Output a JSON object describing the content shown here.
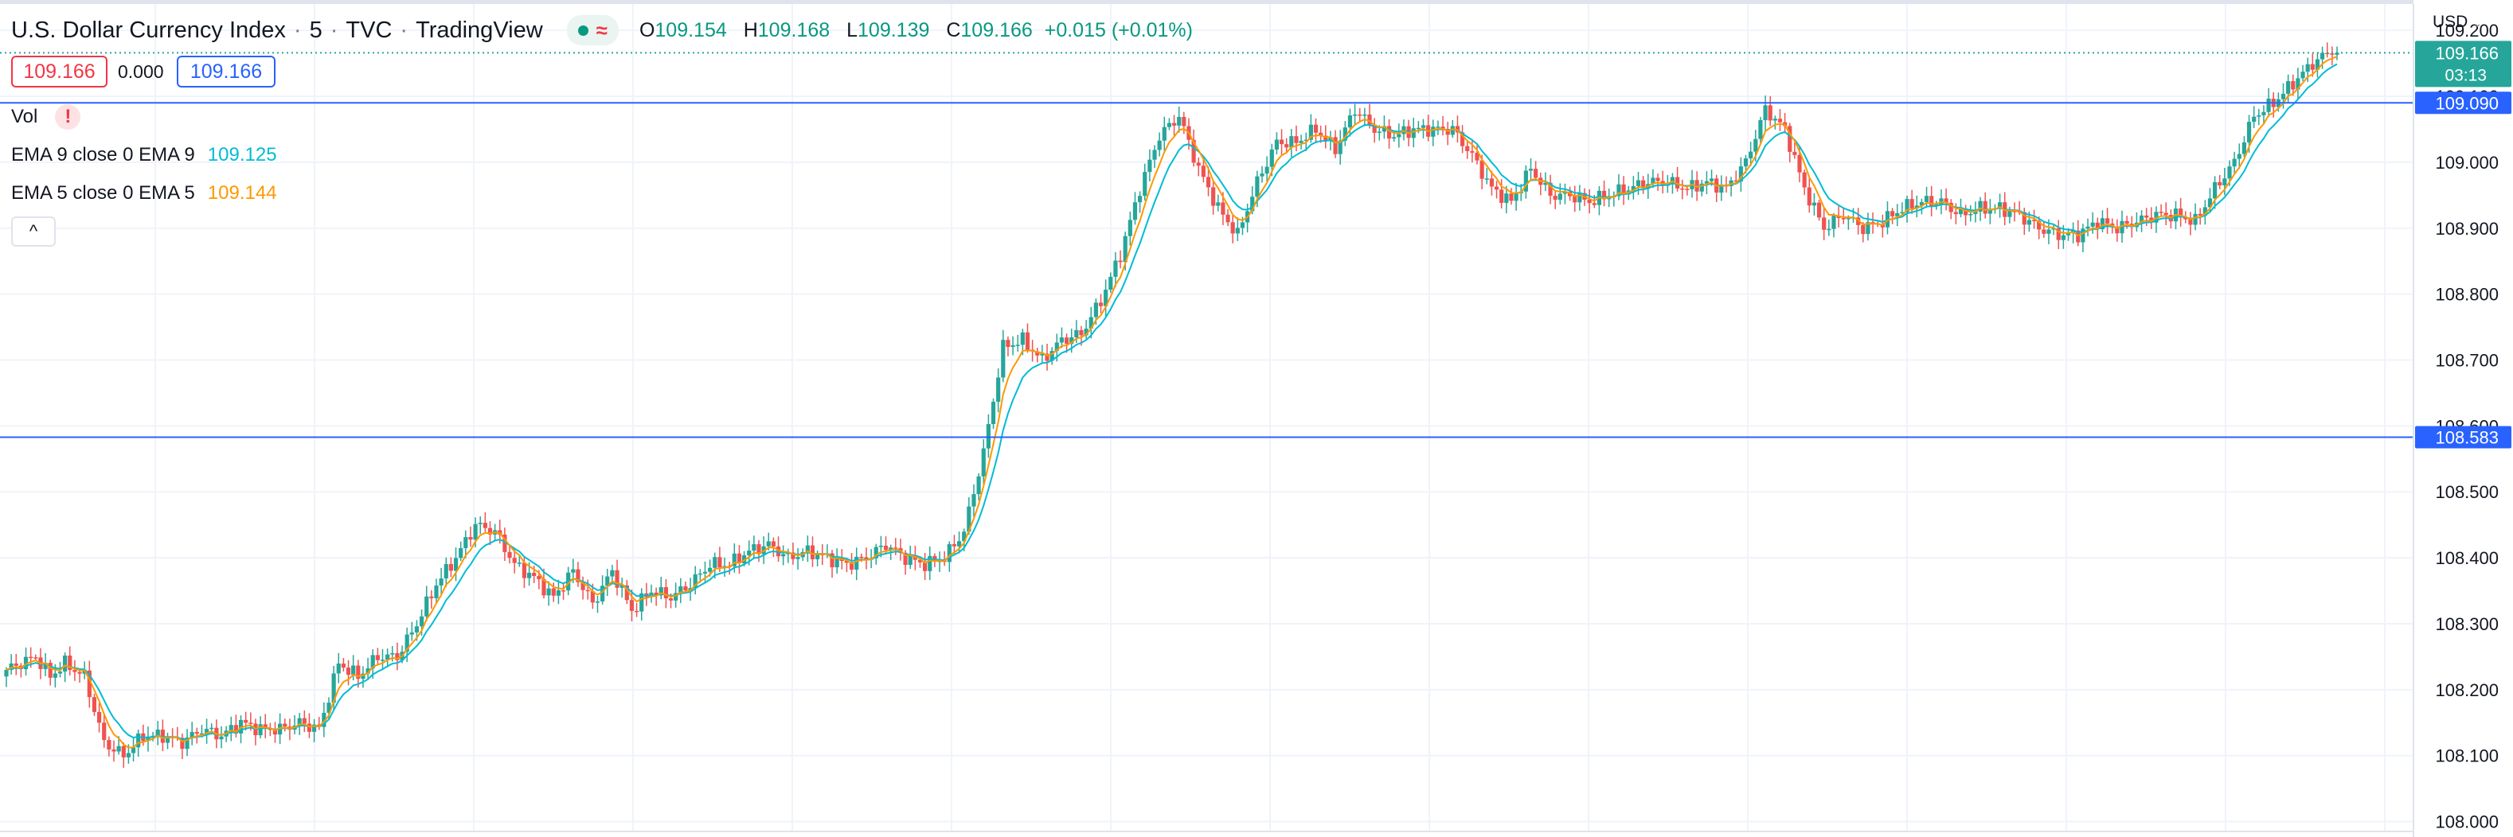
{
  "header": {
    "symbol": "U.S. Dollar Currency Index",
    "interval": "5",
    "exchange": "TVC",
    "source": "TradingView",
    "ohlc": {
      "o_label": "O",
      "o": "109.154",
      "h_label": "H",
      "h": "109.168",
      "l_label": "L",
      "l": "109.139",
      "c_label": "C",
      "c": "109.166",
      "change": "+0.015 (+0.01%)"
    }
  },
  "quote": {
    "bid": "109.166",
    "spread": "0.000",
    "ask": "109.166"
  },
  "legends": {
    "vol": "Vol",
    "vol_warning": "!",
    "ema9_label": "EMA 9 close 0 EMA 9",
    "ema9_value": "109.125",
    "ema5_label": "EMA 5 close 0 EMA 5",
    "ema5_value": "109.144",
    "collapse": "^"
  },
  "currency": "USD",
  "colors": {
    "up": "#26a69a",
    "down": "#ef5350",
    "ema9": "#00bcd4",
    "ema5": "#ff9800",
    "hline": "#2962ff",
    "last_price": "#26a69a",
    "grid": "#f0f3fa"
  },
  "chart_data": {
    "type": "candlestick",
    "ylim": [
      107.985,
      109.24
    ],
    "ticks": [
      "108.000",
      "108.100",
      "108.200",
      "108.300",
      "108.400",
      "108.500",
      "108.600",
      "108.700",
      "108.800",
      "108.900",
      "109.000",
      "109.100",
      "109.200"
    ],
    "last_price": "109.166",
    "countdown": "03:13",
    "horizontal_lines": [
      {
        "value": 109.09,
        "label": "109.090"
      },
      {
        "value": 108.583,
        "label": "108.583"
      }
    ],
    "series": [
      {
        "name": "EMA 9",
        "color": "#00bcd4",
        "period": 9
      },
      {
        "name": "EMA 5",
        "color": "#ff9800",
        "period": 5
      }
    ],
    "close_path": [
      [
        0,
        108.23
      ],
      [
        6,
        108.25
      ],
      [
        9,
        108.22
      ],
      [
        12,
        108.24
      ],
      [
        16,
        108.22
      ],
      [
        20,
        108.12
      ],
      [
        24,
        108.1
      ],
      [
        28,
        108.13
      ],
      [
        32,
        108.13
      ],
      [
        36,
        108.12
      ],
      [
        40,
        108.14
      ],
      [
        44,
        108.13
      ],
      [
        48,
        108.15
      ],
      [
        52,
        108.14
      ],
      [
        56,
        108.14
      ],
      [
        60,
        108.15
      ],
      [
        64,
        108.14
      ],
      [
        68,
        108.24
      ],
      [
        72,
        108.22
      ],
      [
        76,
        108.25
      ],
      [
        80,
        108.25
      ],
      [
        84,
        108.3
      ],
      [
        88,
        108.36
      ],
      [
        92,
        108.4
      ],
      [
        96,
        108.45
      ],
      [
        100,
        108.44
      ],
      [
        104,
        108.39
      ],
      [
        108,
        108.37
      ],
      [
        112,
        108.34
      ],
      [
        116,
        108.38
      ],
      [
        120,
        108.33
      ],
      [
        124,
        108.38
      ],
      [
        128,
        108.32
      ],
      [
        132,
        108.35
      ],
      [
        136,
        108.34
      ],
      [
        140,
        108.36
      ],
      [
        144,
        108.39
      ],
      [
        148,
        108.39
      ],
      [
        152,
        108.41
      ],
      [
        156,
        108.42
      ],
      [
        160,
        108.4
      ],
      [
        164,
        108.41
      ],
      [
        168,
        108.4
      ],
      [
        172,
        108.39
      ],
      [
        176,
        108.4
      ],
      [
        180,
        108.42
      ],
      [
        184,
        108.4
      ],
      [
        188,
        108.39
      ],
      [
        192,
        108.4
      ],
      [
        196,
        108.44
      ],
      [
        200,
        108.56
      ],
      [
        204,
        108.72
      ],
      [
        208,
        108.73
      ],
      [
        212,
        108.7
      ],
      [
        216,
        108.73
      ],
      [
        220,
        108.74
      ],
      [
        224,
        108.79
      ],
      [
        228,
        108.86
      ],
      [
        232,
        108.96
      ],
      [
        236,
        109.04
      ],
      [
        240,
        109.07
      ],
      [
        244,
        108.99
      ],
      [
        248,
        108.93
      ],
      [
        252,
        108.89
      ],
      [
        256,
        108.97
      ],
      [
        260,
        109.03
      ],
      [
        264,
        109.03
      ],
      [
        268,
        109.05
      ],
      [
        272,
        109.02
      ],
      [
        276,
        109.08
      ],
      [
        280,
        109.05
      ],
      [
        284,
        109.04
      ],
      [
        288,
        109.05
      ],
      [
        292,
        109.05
      ],
      [
        296,
        109.05
      ],
      [
        300,
        109.01
      ],
      [
        304,
        108.96
      ],
      [
        308,
        108.94
      ],
      [
        312,
        108.99
      ],
      [
        316,
        108.95
      ],
      [
        320,
        108.95
      ],
      [
        324,
        108.94
      ],
      [
        328,
        108.95
      ],
      [
        332,
        108.96
      ],
      [
        336,
        108.97
      ],
      [
        340,
        108.97
      ],
      [
        344,
        108.96
      ],
      [
        348,
        108.97
      ],
      [
        352,
        108.96
      ],
      [
        356,
        109.0
      ],
      [
        360,
        109.08
      ],
      [
        364,
        109.05
      ],
      [
        368,
        108.96
      ],
      [
        372,
        108.9
      ],
      [
        376,
        108.92
      ],
      [
        380,
        108.9
      ],
      [
        384,
        108.91
      ],
      [
        388,
        108.93
      ],
      [
        392,
        108.94
      ],
      [
        396,
        108.94
      ],
      [
        400,
        108.92
      ],
      [
        404,
        108.93
      ],
      [
        408,
        108.93
      ],
      [
        412,
        108.92
      ],
      [
        416,
        108.9
      ],
      [
        420,
        108.89
      ],
      [
        424,
        108.89
      ],
      [
        428,
        108.91
      ],
      [
        432,
        108.9
      ],
      [
        436,
        108.91
      ],
      [
        440,
        108.92
      ],
      [
        444,
        108.92
      ],
      [
        448,
        108.91
      ],
      [
        452,
        108.96
      ],
      [
        456,
        109.0
      ],
      [
        460,
        109.07
      ],
      [
        464,
        109.09
      ],
      [
        468,
        109.12
      ],
      [
        472,
        109.15
      ],
      [
        476,
        109.17
      ]
    ]
  }
}
